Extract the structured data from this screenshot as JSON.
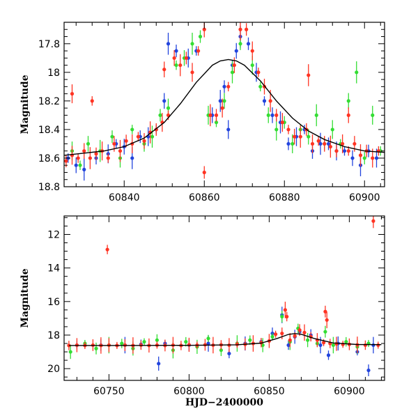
{
  "chart_data": [
    {
      "name": "zoom",
      "type": "scatter",
      "xlabel": "",
      "ylabel": "Magnitude",
      "xlim": [
        60825,
        60905
      ],
      "ylim": [
        18.8,
        17.65
      ],
      "y_inverted": true,
      "xticks": [
        60840,
        60860,
        60880,
        60900
      ],
      "yticks": [
        17.8,
        18,
        18.2,
        18.4,
        18.6,
        18.8
      ],
      "model_curve": {
        "description": "black curve peaking ~17.91 at ~60866, baseline ~18.56",
        "x": [
          60825,
          60830,
          60835,
          60840,
          60845,
          60850,
          60854,
          60858,
          60862,
          60864,
          60866,
          60868,
          60870,
          60874,
          60878,
          60882,
          60886,
          60890,
          60895,
          60900,
          60905
        ],
        "y": [
          18.58,
          18.565,
          18.55,
          18.52,
          18.46,
          18.35,
          18.22,
          18.07,
          17.95,
          17.92,
          17.91,
          17.92,
          17.95,
          18.06,
          18.2,
          18.32,
          18.41,
          18.47,
          18.52,
          18.55,
          18.56
        ]
      },
      "series": [
        {
          "color": "#2244dd",
          "points": [
            [
              60826,
              18.6
            ],
            [
              60828,
              18.65
            ],
            [
              60830,
              18.68
            ],
            [
              60833,
              18.6
            ],
            [
              60836,
              18.57
            ],
            [
              60838,
              18.5
            ],
            [
              60840,
              18.52
            ],
            [
              60842,
              18.6
            ],
            [
              60844,
              18.45
            ],
            [
              60846,
              18.45
            ],
            [
              60848,
              18.4
            ],
            [
              60850,
              18.2
            ],
            [
              60851,
              17.8
            ],
            [
              60853,
              17.85
            ],
            [
              60856,
              17.9
            ],
            [
              60858,
              17.85
            ],
            [
              60862,
              18.3
            ],
            [
              60864,
              18.2
            ],
            [
              60865,
              18.1
            ],
            [
              60866,
              18.4
            ],
            [
              60867,
              17.95
            ],
            [
              60868,
              17.85
            ],
            [
              60869,
              17.75
            ],
            [
              60871,
              17.8
            ],
            [
              60873,
              18.0
            ],
            [
              60875,
              18.2
            ],
            [
              60877,
              18.3
            ],
            [
              60879,
              18.35
            ],
            [
              60881,
              18.5
            ],
            [
              60883,
              18.45
            ],
            [
              60885,
              18.4
            ],
            [
              60887,
              18.55
            ],
            [
              60889,
              18.5
            ],
            [
              60891,
              18.5
            ],
            [
              60893,
              18.55
            ],
            [
              60895,
              18.55
            ],
            [
              60897,
              18.6
            ],
            [
              60899,
              18.65
            ],
            [
              60901,
              18.55
            ],
            [
              60903,
              18.6
            ]
          ]
        },
        {
          "color": "#33dd33",
          "points": [
            [
              60827,
              18.55
            ],
            [
              60829,
              18.65
            ],
            [
              60831,
              18.5
            ],
            [
              60834,
              18.55
            ],
            [
              60837,
              18.45
            ],
            [
              60839,
              18.6
            ],
            [
              60842,
              18.4
            ],
            [
              60845,
              18.5
            ],
            [
              60847,
              18.45
            ],
            [
              60849,
              18.3
            ],
            [
              60851,
              18.25
            ],
            [
              60853,
              17.95
            ],
            [
              60855,
              17.9
            ],
            [
              60857,
              17.8
            ],
            [
              60859,
              17.75
            ],
            [
              60861,
              18.3
            ],
            [
              60863,
              18.35
            ],
            [
              60865,
              18.2
            ],
            [
              60867,
              18.0
            ],
            [
              60869,
              17.8
            ],
            [
              60872,
              17.95
            ],
            [
              60874,
              18.1
            ],
            [
              60876,
              18.3
            ],
            [
              60878,
              18.4
            ],
            [
              60880,
              18.35
            ],
            [
              60882,
              18.5
            ],
            [
              60884,
              18.4
            ],
            [
              60886,
              18.45
            ],
            [
              60888,
              18.3
            ],
            [
              60890,
              18.5
            ],
            [
              60892,
              18.4
            ],
            [
              60894,
              18.5
            ],
            [
              60896,
              18.2
            ],
            [
              60898,
              18.0
            ],
            [
              60900,
              18.6
            ],
            [
              60902,
              18.3
            ],
            [
              60904,
              18.55
            ]
          ]
        },
        {
          "color": "#ff3322",
          "points": [
            [
              60825.5,
              18.62
            ],
            [
              60827,
              18.58
            ],
            [
              60828.5,
              18.6
            ],
            [
              60830,
              18.55
            ],
            [
              60831.5,
              18.6
            ],
            [
              60833,
              18.57
            ],
            [
              60834.5,
              18.55
            ],
            [
              60836,
              18.6
            ],
            [
              60837.5,
              18.5
            ],
            [
              60839,
              18.55
            ],
            [
              60840.5,
              18.48
            ],
            [
              60842,
              18.5
            ],
            [
              60843.5,
              18.45
            ],
            [
              60845,
              18.48
            ],
            [
              60846.5,
              18.42
            ],
            [
              60848,
              18.4
            ],
            [
              60849.5,
              18.35
            ],
            [
              60851,
              18.3
            ],
            [
              60852.5,
              17.9
            ],
            [
              60854,
              17.95
            ],
            [
              60855.5,
              17.9
            ],
            [
              60857,
              18.0
            ],
            [
              60858.5,
              17.85
            ],
            [
              60860,
              17.7
            ],
            [
              60861.5,
              18.3
            ],
            [
              60863,
              18.3
            ],
            [
              60864.5,
              18.25
            ],
            [
              60866,
              18.1
            ],
            [
              60867.5,
              17.95
            ],
            [
              60869,
              17.7
            ],
            [
              60870.5,
              17.7
            ],
            [
              60872,
              17.85
            ],
            [
              60873.5,
              18.0
            ],
            [
              60875,
              18.1
            ],
            [
              60876.5,
              18.2
            ],
            [
              60878,
              18.3
            ],
            [
              60879.5,
              18.35
            ],
            [
              60881,
              18.4
            ],
            [
              60882.5,
              18.45
            ],
            [
              60884,
              18.45
            ],
            [
              60885.5,
              18.4
            ],
            [
              60887,
              18.5
            ],
            [
              60888.5,
              18.48
            ],
            [
              60890,
              18.5
            ],
            [
              60891.5,
              18.52
            ],
            [
              60893,
              18.55
            ],
            [
              60894.5,
              18.5
            ],
            [
              60896,
              18.55
            ],
            [
              60897.5,
              18.5
            ],
            [
              60899,
              18.58
            ],
            [
              60900.5,
              18.55
            ],
            [
              60902,
              18.6
            ],
            [
              60903.5,
              18.55
            ],
            [
              60850,
              17.98
            ],
            [
              60886,
              18.02
            ],
            [
              60860,
              18.7
            ],
            [
              60827,
              18.15
            ],
            [
              60832,
              18.2
            ],
            [
              60896,
              18.3
            ]
          ]
        }
      ]
    },
    {
      "name": "full",
      "type": "scatter",
      "xlabel": "HJD−2400000",
      "ylabel": "Magnitude",
      "xlim": [
        60722,
        60922
      ],
      "ylim": [
        20.7,
        10.9
      ],
      "y_inverted": true,
      "xticks": [
        60750,
        60800,
        60850,
        60900
      ],
      "yticks": [
        12,
        14,
        16,
        18,
        20
      ],
      "model_curve": {
        "description": "black curve, flat ~18.6 with bump peaking ~17.9 at ~60866",
        "x": [
          60725,
          60760,
          60800,
          60830,
          60845,
          60855,
          60862,
          60866,
          60870,
          60878,
          60890,
          60905,
          60920
        ],
        "y": [
          18.62,
          18.62,
          18.61,
          18.58,
          18.48,
          18.2,
          17.96,
          17.91,
          17.95,
          18.2,
          18.47,
          18.56,
          18.57
        ]
      },
      "series": [
        {
          "color": "#2244dd",
          "points": [
            [
              60730,
              18.6
            ],
            [
              60745,
              18.6
            ],
            [
              60760,
              18.6
            ],
            [
              60770,
              18.55
            ],
            [
              60781,
              19.7
            ],
            [
              60785,
              18.5
            ],
            [
              60800,
              18.6
            ],
            [
              60812,
              18.5
            ],
            [
              60825,
              19.1
            ],
            [
              60835,
              18.5
            ],
            [
              60845,
              18.4
            ],
            [
              60852,
              17.9
            ],
            [
              60858,
              16.8
            ],
            [
              60862,
              18.6
            ],
            [
              60866,
              18.1
            ],
            [
              60869,
              17.8
            ],
            [
              60876,
              18.0
            ],
            [
              60882,
              18.6
            ],
            [
              60887,
              19.2
            ],
            [
              60893,
              18.5
            ],
            [
              60905,
              19.0
            ],
            [
              60912,
              20.1
            ],
            [
              60915,
              18.6
            ]
          ]
        },
        {
          "color": "#33dd33",
          "points": [
            [
              60726,
              19.0
            ],
            [
              60735,
              18.5
            ],
            [
              60742,
              18.8
            ],
            [
              60750,
              18.6
            ],
            [
              60758,
              18.5
            ],
            [
              60765,
              18.8
            ],
            [
              60772,
              18.4
            ],
            [
              60780,
              18.3
            ],
            [
              60790,
              18.9
            ],
            [
              60798,
              18.4
            ],
            [
              60805,
              18.7
            ],
            [
              60812,
              18.2
            ],
            [
              60820,
              18.9
            ],
            [
              60830,
              18.5
            ],
            [
              60838,
              18.3
            ],
            [
              60846,
              18.6
            ],
            [
              60852,
              18.1
            ],
            [
              60858,
              16.9
            ],
            [
              60863,
              18.4
            ],
            [
              60868,
              17.6
            ],
            [
              60874,
              18.3
            ],
            [
              60880,
              18.5
            ],
            [
              60885,
              17.8
            ],
            [
              60890,
              18.6
            ],
            [
              60898,
              18.4
            ],
            [
              60905,
              18.7
            ],
            [
              60912,
              18.5
            ]
          ]
        },
        {
          "color": "#ff3322",
          "points": [
            [
              60725,
              18.62
            ],
            [
              60730,
              18.6
            ],
            [
              60735,
              18.62
            ],
            [
              60740,
              18.6
            ],
            [
              60745,
              18.62
            ],
            [
              60749,
              12.9
            ],
            [
              60750,
              18.6
            ],
            [
              60755,
              18.62
            ],
            [
              60760,
              18.6
            ],
            [
              60765,
              18.62
            ],
            [
              60770,
              18.6
            ],
            [
              60775,
              18.62
            ],
            [
              60780,
              18.6
            ],
            [
              60785,
              18.62
            ],
            [
              60790,
              18.6
            ],
            [
              60795,
              18.62
            ],
            [
              60800,
              18.58
            ],
            [
              60805,
              18.6
            ],
            [
              60810,
              18.58
            ],
            [
              60815,
              18.6
            ],
            [
              60820,
              18.58
            ],
            [
              60825,
              18.6
            ],
            [
              60830,
              18.55
            ],
            [
              60835,
              18.55
            ],
            [
              60840,
              18.5
            ],
            [
              60845,
              18.45
            ],
            [
              60850,
              18.35
            ],
            [
              60854,
              17.95
            ],
            [
              60858,
              17.9
            ],
            [
              60860,
              16.5
            ],
            [
              60861,
              16.9
            ],
            [
              60863,
              18.3
            ],
            [
              60866,
              18.05
            ],
            [
              60869,
              17.7
            ],
            [
              60872,
              17.85
            ],
            [
              60876,
              18.1
            ],
            [
              60880,
              18.3
            ],
            [
              60884,
              18.45
            ],
            [
              60885,
              16.6
            ],
            [
              60886,
              17.1
            ],
            [
              60888,
              18.5
            ],
            [
              60892,
              18.52
            ],
            [
              60896,
              18.55
            ],
            [
              60900,
              18.55
            ],
            [
              60905,
              18.58
            ],
            [
              60910,
              18.6
            ],
            [
              60915,
              11.2
            ],
            [
              60918,
              18.6
            ]
          ]
        }
      ]
    }
  ]
}
